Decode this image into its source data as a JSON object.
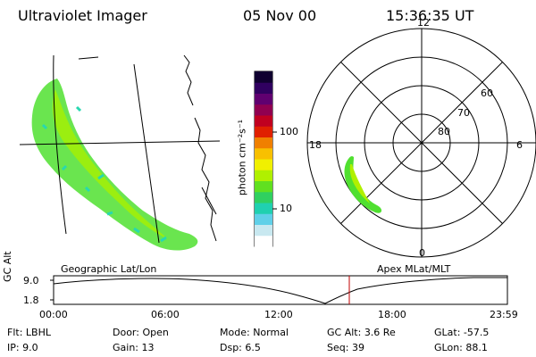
{
  "header": {
    "instrument": "Ultraviolet Imager",
    "date": "05 Nov 00",
    "time": "15:36:35 UT"
  },
  "left_panel": {
    "label": "Geographic Lat/Lon"
  },
  "right_panel": {
    "label": "Apex MLat/MLT",
    "mlt_labels": [
      "12",
      "6",
      "0",
      "18"
    ],
    "lat_labels": [
      "60",
      "70",
      "80"
    ]
  },
  "colorbar": {
    "unit_label": "photon cm⁻²s⁻¹",
    "tick_labels": [
      "100",
      "10"
    ],
    "scale": "log",
    "colors": [
      "#ffffff",
      "#c8e8f0",
      "#60d0e8",
      "#20d0b0",
      "#30d060",
      "#60e020",
      "#b0f000",
      "#f0f000",
      "#f8c000",
      "#f08000",
      "#e02000",
      "#c00020",
      "#900050",
      "#600070",
      "#300060",
      "#100030"
    ]
  },
  "altitude_plot": {
    "ylabel": "GC Alt",
    "y_ticks": [
      "9.0",
      "1.8"
    ],
    "x_ticks": [
      "00:00",
      "06:00",
      "12:00",
      "18:00",
      "23:59"
    ],
    "current_time_color": "#c00000"
  },
  "status": {
    "flt": {
      "label": "Flt:",
      "value": "LBHL"
    },
    "ip": {
      "label": "IP:",
      "value": "9.0"
    },
    "door": {
      "label": "Door:",
      "value": "Open"
    },
    "gain": {
      "label": "Gain:",
      "value": "13"
    },
    "mode": {
      "label": "Mode:",
      "value": "Normal"
    },
    "dsp": {
      "label": "Dsp:",
      "value": "6.5"
    },
    "gcalt": {
      "label": "GC Alt:",
      "value": "3.6 Re"
    },
    "seq": {
      "label": "Seq:",
      "value": "39"
    },
    "glat": {
      "label": "GLat:",
      "value": "-57.5"
    },
    "glon": {
      "label": "GLon:",
      "value": "88.1"
    }
  }
}
